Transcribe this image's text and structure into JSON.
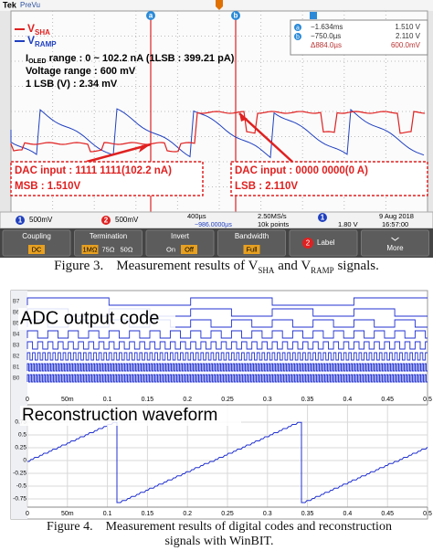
{
  "scope": {
    "brand": "Tek",
    "mode": "PreVu",
    "legend": [
      {
        "symbol": "V",
        "subscript": "SHA"
      },
      {
        "symbol": "V",
        "subscript": "RAMP"
      }
    ],
    "current_range": {
      "symbol": "I",
      "subscript": "OLED",
      "text": " range : 0 ~ 102.2 nA (1LSB : 399.21 pA)"
    },
    "voltage_range": "Voltage range : 600 mV",
    "lsb_voltage": "1 LSB (V) : 2.34 mV",
    "cursors": {
      "markers": [
        "a",
        "b"
      ],
      "readout": [
        [
          "a",
          "−1.634ms",
          "1.510 V"
        ],
        [
          "b",
          "−750.0µs",
          "2.110 V"
        ]
      ],
      "delta": [
        "Δ884.0µs",
        "600.0mV"
      ]
    },
    "callouts": [
      {
        "line1": "DAC input : 1111 1111(102.2 nA)",
        "line2": "MSB : 1.510V"
      },
      {
        "line1": "DAC input : 0000 0000(0 A)",
        "line2": "LSB : 2.110V"
      }
    ],
    "status": {
      "ch1": "1",
      "ch1_scale": "500mV",
      "ch2": "2",
      "ch2_scale": "500mV",
      "timebase": "400µs",
      "position": "−986.0000µs",
      "sample_rate": "2.50MS/s",
      "record": "10k points",
      "trigger_ch": "1",
      "trigger_level": "1.80 V",
      "date": "9 Aug 2018",
      "time": "16:57:00"
    },
    "menu": [
      {
        "label": "Coupling",
        "options": [
          "DC"
        ],
        "selected": 0
      },
      {
        "label": "Termination",
        "options": [
          "1MΩ",
          "75Ω",
          "50Ω"
        ],
        "selected": 0
      },
      {
        "label": "Invert",
        "options": [
          "On",
          "Off"
        ],
        "selected": 1
      },
      {
        "label": "Bandwidth",
        "options": [
          "Full"
        ],
        "selected": 0
      },
      {
        "label": "Label",
        "badge": "2"
      },
      {
        "label": "More"
      }
    ]
  },
  "figure3_caption": {
    "number": "Figure 3.",
    "before": "Measurement results of V",
    "sub1": "SHA",
    "middle": " and V",
    "sub2": "RAMP",
    "after": " signals."
  },
  "figure4": {
    "title_codes": "ADC output code",
    "bits": [
      "B7",
      "B6",
      "B5",
      "B4",
      "B3",
      "B2",
      "B1",
      "B0"
    ],
    "title_wave": "Reconstruction waveform",
    "time_labels": [
      "0",
      "50m",
      "0.1",
      "0.15",
      "0.2",
      "0.25",
      "0.3",
      "0.35",
      "0.4",
      "0.45",
      "0.5"
    ],
    "amplitude_labels": [
      "0.75",
      "0.5",
      "0.25",
      "0",
      "-0.25",
      "-0.5",
      "-0.75"
    ]
  },
  "figure4_caption": {
    "number": "Figure 4.",
    "text": "Measurement results of digital codes and reconstruction signals with WinBIT."
  }
}
